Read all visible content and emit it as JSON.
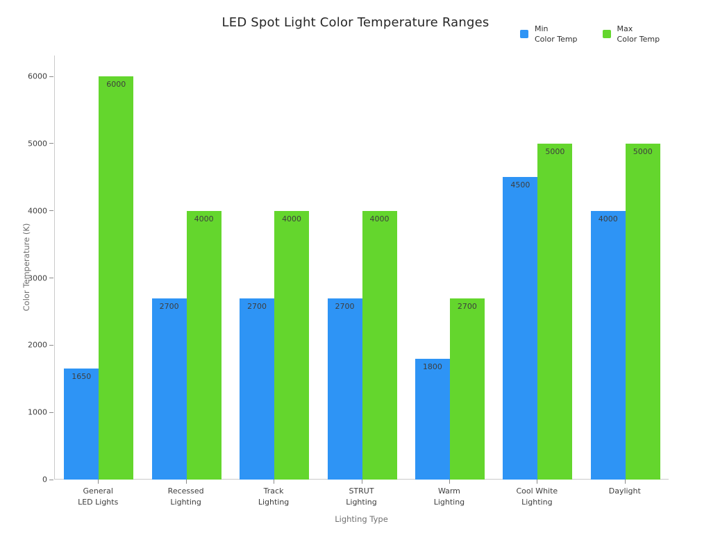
{
  "chart_data": {
    "type": "bar",
    "title": "LED Spot Light Color Temperature Ranges",
    "xlabel": "Lighting Type",
    "ylabel": "Color Temperature (K)",
    "categories": [
      "General\nLED Lights",
      "Recessed\nLighting",
      "Track\nLighting",
      "STRUT\nLighting",
      "Warm\nLighting",
      "Cool White\nLighting",
      "Daylight"
    ],
    "series": [
      {
        "name": "Min\nColor Temp",
        "color": "#2E94F5",
        "values": [
          1650,
          2700,
          2700,
          2700,
          1800,
          4500,
          4000
        ]
      },
      {
        "name": "Max\nColor Temp",
        "color": "#64D62D",
        "values": [
          6000,
          4000,
          4000,
          4000,
          2700,
          5000,
          5000
        ]
      }
    ],
    "yticks": [
      0,
      1000,
      2000,
      3000,
      4000,
      5000,
      6000
    ],
    "ylim": [
      0,
      6310
    ],
    "grid": false,
    "legend_position": "top-right",
    "bar_labels": true
  },
  "style": {
    "axis_line_color": "#c9c9c9",
    "tick_mark_color": "#8a8a8a",
    "tick_label_color": "#3c3c3c",
    "bar_label_color": "#3d3d3d",
    "title_color": "#262626",
    "axis_title_color": "#707070",
    "background": "#ffffff"
  }
}
